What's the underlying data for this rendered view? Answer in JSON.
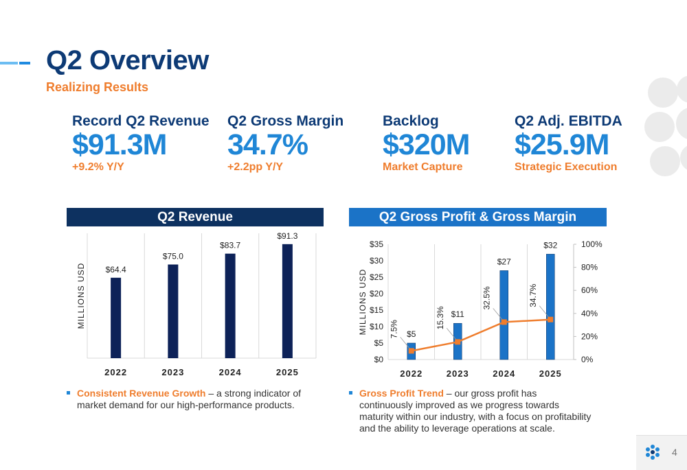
{
  "title": "Q2 Overview",
  "subtitle": "Realizing Results",
  "kpis": [
    {
      "label": "Record Q2 Revenue",
      "value": "$91.3M",
      "sub": "+9.2% Y/Y"
    },
    {
      "label": "Q2 Gross Margin",
      "value": "34.7%",
      "sub": "+2.2pp Y/Y"
    },
    {
      "label": "Backlog",
      "value": "$320M",
      "sub": "Market Capture"
    },
    {
      "label": "Q2 Adj. EBITDA",
      "value": "$25.9M",
      "sub": "Strategic Execution"
    }
  ],
  "colors": {
    "navy": "#0d3a75",
    "blue": "#1f86d6",
    "orange": "#ef7d2d",
    "revenue_bar": "#0d2258",
    "gp_bar": "#1b73c7"
  },
  "bullets": {
    "left": {
      "highlight": "Consistent Revenue Growth",
      "text": " – a strong indicator of market demand for our high-performance products."
    },
    "right": {
      "highlight": "Gross Profit Trend",
      "text": " – our gross profit has continuously improved as we progress towards maturity within our industry, with a focus on profitability and the ability to leverage operations at scale."
    }
  },
  "page_number": "4",
  "chart_data": [
    {
      "type": "bar",
      "title": "Q2 Revenue",
      "ylabel": "MILLIONS USD",
      "categories": [
        "2022",
        "2023",
        "2024",
        "2025"
      ],
      "values": [
        64.4,
        75.0,
        83.7,
        91.3
      ],
      "data_labels": [
        "$64.4",
        "$75.0",
        "$83.7",
        "$91.3"
      ],
      "ylim": [
        0,
        100
      ],
      "grid": "vertical category dividers",
      "bar_color": "#0d2258"
    },
    {
      "type": "bar",
      "title": "Q2 Gross Profit & Gross Margin",
      "ylabel": "MILLIONS USD",
      "categories": [
        "2022",
        "2023",
        "2024",
        "2025"
      ],
      "series": [
        {
          "values": [
            5,
            11,
            27,
            32
          ],
          "data_labels": [
            "$5",
            "$11",
            "$27",
            "$32"
          ],
          "axis": "left",
          "color": "#1b73c7",
          "kind": "bar"
        },
        {
          "values": [
            7.5,
            15.3,
            32.5,
            34.7
          ],
          "data_labels": [
            "7.5%",
            "15.3%",
            "32.5%",
            "34.7%"
          ],
          "axis": "right",
          "color": "#ef7d2d",
          "kind": "line"
        }
      ],
      "y_left": {
        "ylim": [
          0,
          35
        ],
        "ticks": [
          "$0",
          "$5",
          "$10",
          "$15",
          "$20",
          "$25",
          "$30",
          "$35"
        ]
      },
      "y_right": {
        "ylim": [
          0,
          100
        ],
        "ticks": [
          "0%",
          "20%",
          "40%",
          "60%",
          "80%",
          "100%"
        ]
      },
      "grid": "vertical category dividers"
    }
  ]
}
